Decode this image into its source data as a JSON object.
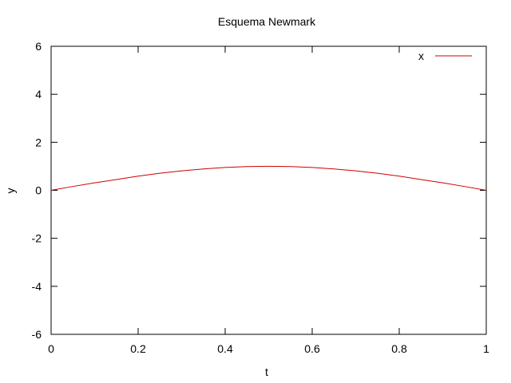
{
  "chart_data": {
    "type": "line",
    "title": "Esquema Newmark",
    "xlabel": "t",
    "ylabel": "y",
    "xlim": [
      0,
      1
    ],
    "ylim": [
      -6,
      6
    ],
    "x_ticks": [
      0,
      0.2,
      0.4,
      0.6,
      0.8,
      1
    ],
    "x_tick_labels": [
      "0",
      "0.2",
      "0.4",
      "0.6",
      "0.8",
      "1"
    ],
    "y_ticks": [
      -6,
      -4,
      -2,
      0,
      2,
      4,
      6
    ],
    "y_tick_labels": [
      "-6",
      "-4",
      "-2",
      "0",
      "2",
      "4",
      "6"
    ],
    "grid": false,
    "legend": {
      "position": "top-right"
    },
    "series": [
      {
        "name": "x",
        "color": "#cc0000",
        "x": [
          0,
          0.05,
          0.1,
          0.15,
          0.2,
          0.25,
          0.3,
          0.35,
          0.4,
          0.45,
          0.5,
          0.55,
          0.6,
          0.65,
          0.7,
          0.75,
          0.8,
          0.85,
          0.9,
          0.95,
          1
        ],
        "y": [
          0,
          0.16,
          0.31,
          0.45,
          0.59,
          0.71,
          0.81,
          0.89,
          0.95,
          0.99,
          1.0,
          0.99,
          0.95,
          0.89,
          0.81,
          0.71,
          0.59,
          0.45,
          0.31,
          0.16,
          0
        ]
      }
    ]
  }
}
